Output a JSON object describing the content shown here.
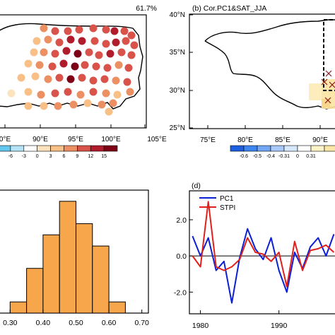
{
  "chart_data": [
    {
      "type": "map",
      "title": "",
      "annotation": "61.7%",
      "x_ticks": [
        "90°E",
        "95°E",
        "100°E",
        "105°E"
      ],
      "x_tick_partial": "0°E",
      "colorbar": {
        "labels": [
          "-6",
          "-3",
          "0",
          "3",
          "6",
          "9",
          "12",
          "15"
        ],
        "colors": [
          "#63c8f0",
          "#b4e4f5",
          "#ffffff",
          "#fde3bd",
          "#f8bf86",
          "#ec8f62",
          "#d9534a",
          "#b01c2c",
          "#7e0016"
        ]
      }
    },
    {
      "type": "map",
      "title": "(b) Cor.PC1&SAT_JJA",
      "y_ticks": [
        "40°N",
        "35°N",
        "30°N",
        "25°N"
      ],
      "x_ticks": [
        "75°E",
        "80°E",
        "85°E",
        "90°E"
      ],
      "colorbar": {
        "labels": [
          "-0.6",
          "-0.5",
          "-0.4",
          "-0.31",
          "0",
          "0.31"
        ],
        "colors": [
          "#1c5fe0",
          "#3f85f0",
          "#72a7f6",
          "#a8c9fa",
          "#d7e8fd",
          "#ffffff",
          "#fff4c8",
          "#fde7a8"
        ]
      }
    },
    {
      "type": "bar",
      "title": "",
      "x_ticks": [
        "0.30",
        "0.40",
        "0.50",
        "0.60",
        "0.70"
      ],
      "categories": [
        "0.30-0.35",
        "0.35-0.40",
        "0.40-0.45",
        "0.45-0.50",
        "0.50-0.55",
        "0.55-0.60",
        "0.60-0.65"
      ],
      "values": [
        1,
        4,
        7,
        10,
        8,
        6,
        1
      ],
      "ylim": [
        0,
        11
      ],
      "color": "#f8a64c"
    },
    {
      "type": "line",
      "title": "(d)",
      "x_ticks": [
        "1980",
        "1990"
      ],
      "y_ticks": [
        "2.0",
        "0.0",
        "-2.0"
      ],
      "ylim": [
        -3.2,
        3.6
      ],
      "xlim": [
        1978.6,
        1997.5
      ],
      "legend_position": "top-left",
      "series": [
        {
          "name": "PC1",
          "color": "#0b1fd6",
          "x": [
            1979,
            1980,
            1981,
            1982,
            1983,
            1984,
            1985,
            1986,
            1987,
            1988,
            1989,
            1990,
            1991,
            1992,
            1993,
            1994,
            1995,
            1996,
            1997
          ],
          "values": [
            1.1,
            0.0,
            1.0,
            -0.8,
            -0.3,
            -2.6,
            -0.1,
            1.5,
            0.4,
            -0.2,
            1.0,
            -0.8,
            -2.0,
            0.2,
            -0.7,
            0.5,
            1.0,
            0.0,
            1.2
          ]
        },
        {
          "name": "STPI",
          "color": "#e0201b",
          "x": [
            1979,
            1980,
            1981,
            1982,
            1983,
            1984,
            1985,
            1986,
            1987,
            1988,
            1989,
            1990,
            1991,
            1992,
            1993,
            1994,
            1995,
            1996,
            1997
          ],
          "values": [
            0.0,
            -0.6,
            3.0,
            -0.6,
            -0.8,
            -0.6,
            -0.2,
            1.0,
            0.2,
            0.1,
            -0.3,
            0.2,
            -1.7,
            0.8,
            -0.8,
            0.3,
            0.4,
            0.6,
            0.2
          ]
        }
      ]
    }
  ]
}
